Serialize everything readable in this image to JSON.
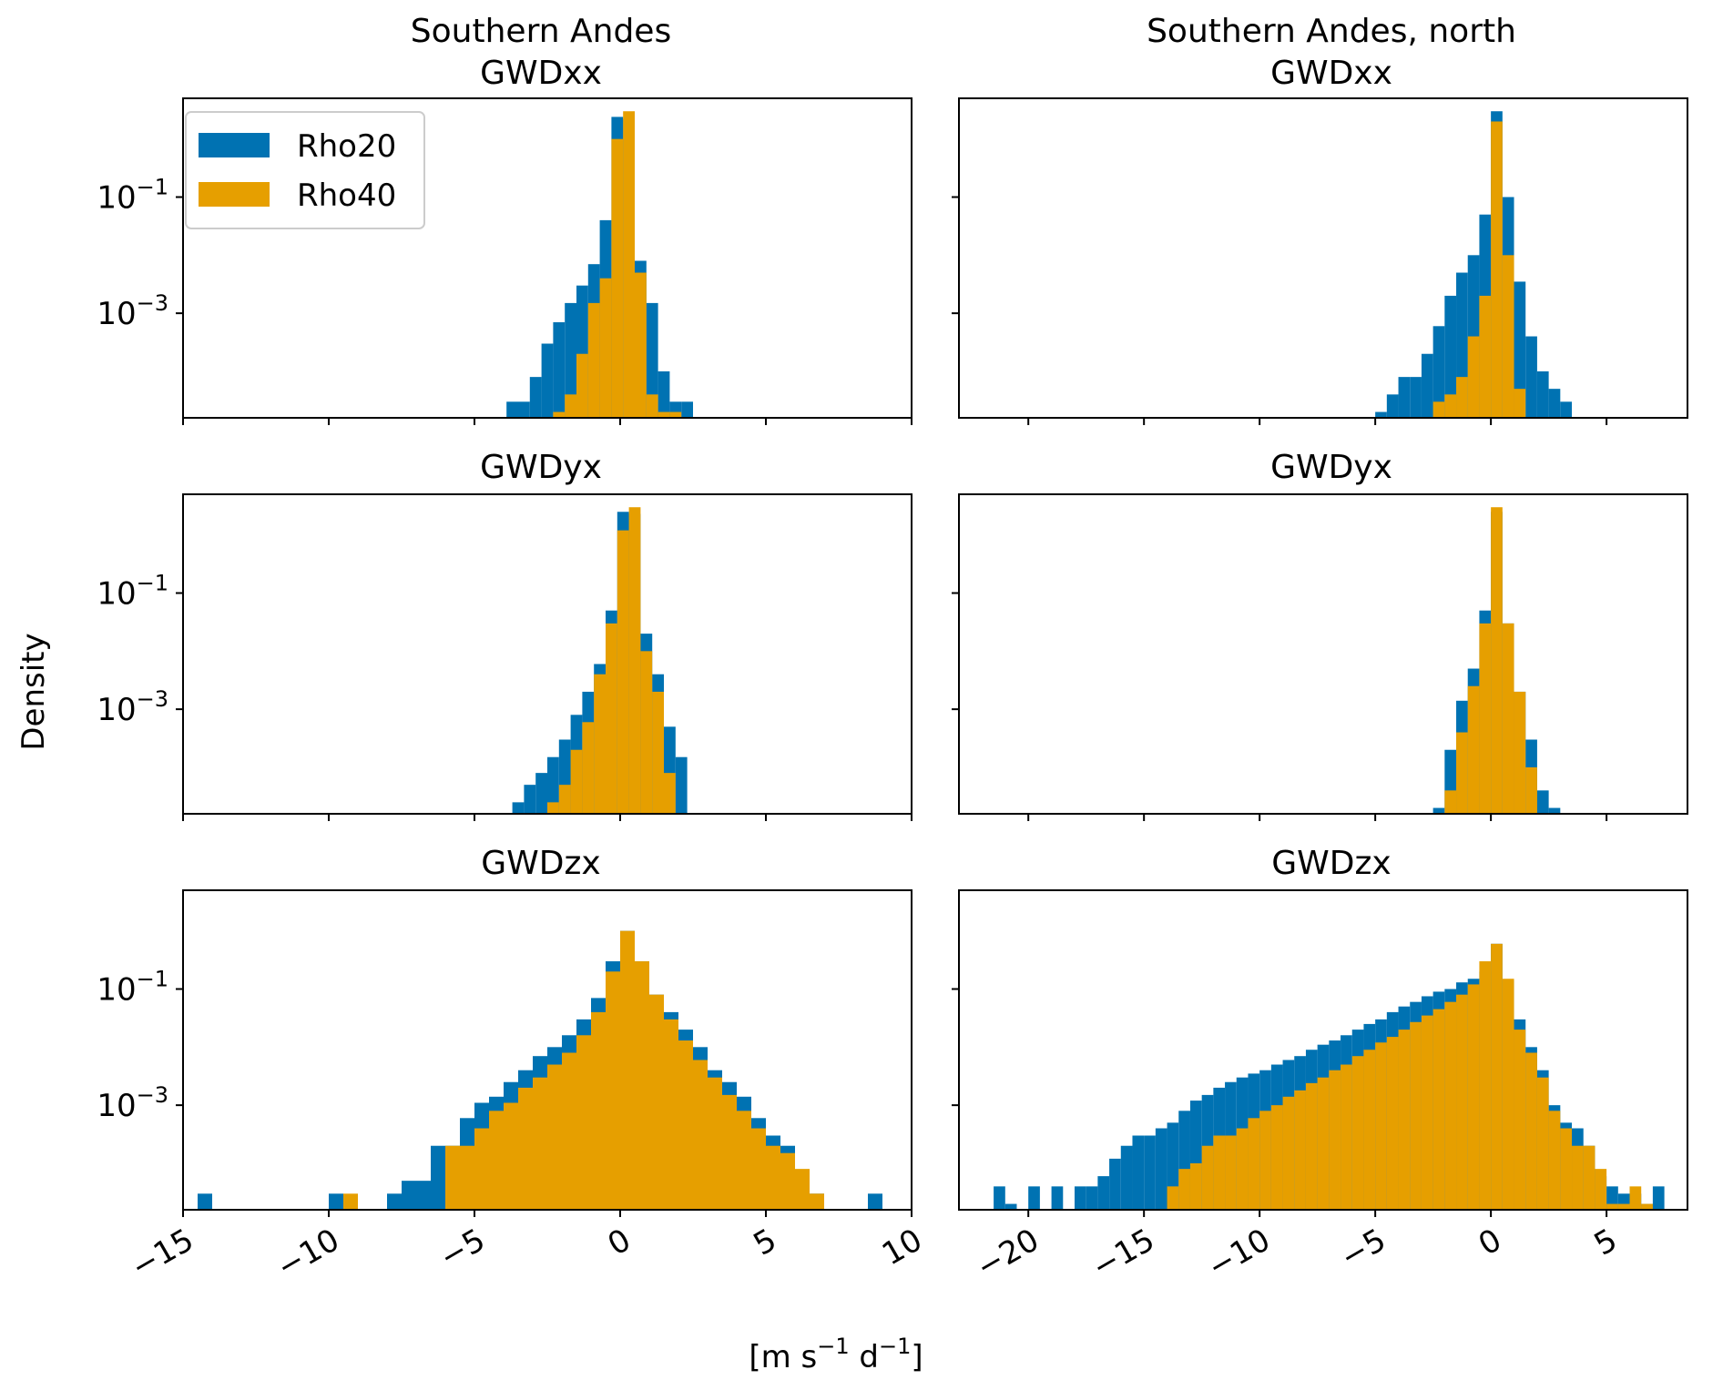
{
  "figure": {
    "ylabel": "Density",
    "xlabel_main": "[m s",
    "xlabel_sup1": "−1",
    "xlabel_mid": " d",
    "xlabel_sup2": "−1",
    "xlabel_end": "]"
  },
  "legend": {
    "placement": "top-left of first panel",
    "items": [
      {
        "label": "Rho20",
        "color": "#0072b2"
      },
      {
        "label": "Rho40",
        "color": "#e69f00"
      }
    ]
  },
  "columns": [
    {
      "title": "Southern Andes",
      "xlim": [
        -15,
        10
      ],
      "xticks": [
        -15,
        -10,
        -5,
        0,
        5,
        10
      ],
      "xtick_labels": [
        "−15",
        "−10",
        "−5",
        "0",
        "5",
        "10"
      ]
    },
    {
      "title": "Southern Andes, north",
      "xlim": [
        -23,
        8.5
      ],
      "xticks": [
        -20,
        -15,
        -10,
        -5,
        0,
        5
      ],
      "xtick_labels": [
        "−20",
        "−15",
        "−10",
        "−5",
        "0",
        "5"
      ]
    }
  ],
  "rows": [
    {
      "title": "GWDxx",
      "ylim_log10": [
        -4.8,
        0.7
      ],
      "yticks_log10": [
        -1,
        -3
      ],
      "ytick_labels": [
        {
          "base": "10",
          "exp": "−1"
        },
        {
          "base": "10",
          "exp": "−3"
        }
      ]
    },
    {
      "title": "GWDyx",
      "ylim_log10": [
        -4.8,
        0.7
      ],
      "yticks_log10": [
        -1,
        -3
      ],
      "ytick_labels": [
        {
          "base": "10",
          "exp": "−1"
        },
        {
          "base": "10",
          "exp": "−3"
        }
      ]
    },
    {
      "title": "GWDzx",
      "ylim_log10": [
        -4.8,
        0.7
      ],
      "yticks_log10": [
        -1,
        -3
      ],
      "ytick_labels": [
        {
          "base": "10",
          "exp": "−1"
        },
        {
          "base": "10",
          "exp": "−3"
        }
      ]
    }
  ],
  "chart_data": [
    {
      "type": "histogram",
      "title": "GWDxx",
      "column": "Southern Andes",
      "scale_y": "log",
      "series": [
        {
          "name": "Rho20",
          "color": "#0072b2",
          "bin_width": 0.4,
          "bins": [
            -3.9,
            -3.5,
            -3.1,
            -2.7,
            -2.3,
            -1.9,
            -1.5,
            -1.1,
            -0.7,
            -0.3,
            0.1,
            0.5,
            0.9,
            1.3,
            1.7,
            2.1
          ],
          "density": [
            3e-05,
            3e-05,
            8e-05,
            0.0003,
            0.0007,
            0.0015,
            0.003,
            0.007,
            0.04,
            2.4,
            2.2,
            0.008,
            0.0015,
            0.0001,
            3e-05,
            3e-05
          ]
        },
        {
          "name": "Rho40",
          "color": "#e69f00",
          "bin_width": 0.4,
          "bins": [
            -2.3,
            -1.9,
            -1.5,
            -1.1,
            -0.7,
            -0.3,
            0.1,
            0.5,
            0.9,
            1.3,
            1.7
          ],
          "density": [
            2e-05,
            4e-05,
            0.0002,
            0.0015,
            0.004,
            1.0,
            3.0,
            0.005,
            4e-05,
            2e-05,
            2e-05
          ]
        }
      ]
    },
    {
      "type": "histogram",
      "title": "GWDyx",
      "column": "Southern Andes",
      "scale_y": "log",
      "series": [
        {
          "name": "Rho20",
          "color": "#0072b2",
          "bin_width": 0.4,
          "bins": [
            -4.1,
            -3.7,
            -3.3,
            -2.9,
            -2.5,
            -2.1,
            -1.7,
            -1.3,
            -0.9,
            -0.5,
            -0.1,
            0.3,
            0.7,
            1.1,
            1.5,
            1.9,
            2.3
          ],
          "density": [
            1.5e-05,
            2.5e-05,
            5e-05,
            8e-05,
            0.00015,
            0.0003,
            0.0008,
            0.002,
            0.006,
            0.05,
            2.5,
            2.3,
            0.02,
            0.004,
            0.0005,
            0.00015,
            1.5e-05
          ]
        },
        {
          "name": "Rho40",
          "color": "#e69f00",
          "bin_width": 0.4,
          "bins": [
            -3.3,
            -2.9,
            -2.5,
            -2.1,
            -1.7,
            -1.3,
            -0.9,
            -0.5,
            -0.1,
            0.3,
            0.7,
            1.1,
            1.5,
            1.9
          ],
          "density": [
            1.5e-05,
            1.5e-05,
            2.5e-05,
            5e-05,
            0.0002,
            0.0006,
            0.004,
            0.03,
            1.2,
            3.0,
            0.01,
            0.002,
            8e-05,
            1.5e-05
          ]
        }
      ]
    },
    {
      "type": "histogram",
      "title": "GWDzx",
      "column": "Southern Andes",
      "scale_y": "log",
      "series": [
        {
          "name": "Rho20",
          "color": "#0072b2",
          "bin_width": 0.5,
          "bins": [
            -14.5,
            -10.0,
            -8.0,
            -7.5,
            -7.0,
            -6.5,
            -6.0,
            -5.5,
            -5.0,
            -4.5,
            -4.0,
            -3.5,
            -3.0,
            -2.5,
            -2.0,
            -1.5,
            -1.0,
            -0.5,
            0.0,
            0.5,
            1.0,
            1.5,
            2.0,
            2.5,
            3.0,
            3.5,
            4.0,
            4.5,
            5.0,
            5.5,
            6.0,
            6.5,
            8.5
          ],
          "density": [
            3e-05,
            3e-05,
            3e-05,
            5e-05,
            5e-05,
            0.0002,
            0.0002,
            0.0006,
            0.0011,
            0.0014,
            0.0025,
            0.004,
            0.007,
            0.01,
            0.016,
            0.03,
            0.07,
            0.3,
            1.0,
            0.3,
            0.08,
            0.04,
            0.02,
            0.01,
            0.004,
            0.0025,
            0.0014,
            0.0006,
            0.0003,
            0.0002,
            5e-05,
            3e-05,
            3e-05
          ]
        },
        {
          "name": "Rho40",
          "color": "#e69f00",
          "bin_width": 0.5,
          "bins": [
            -9.5,
            -6.0,
            -5.5,
            -5.0,
            -4.5,
            -4.0,
            -3.5,
            -3.0,
            -2.5,
            -2.0,
            -1.5,
            -1.0,
            -0.5,
            0.0,
            0.5,
            1.0,
            1.5,
            2.0,
            2.5,
            3.0,
            3.5,
            4.0,
            4.5,
            5.0,
            5.5,
            6.0,
            6.5
          ],
          "density": [
            3e-05,
            0.0002,
            0.0002,
            0.0004,
            0.0008,
            0.0011,
            0.002,
            0.003,
            0.005,
            0.008,
            0.016,
            0.04,
            0.2,
            1.0,
            0.3,
            0.08,
            0.03,
            0.013,
            0.006,
            0.003,
            0.0015,
            0.0008,
            0.0004,
            0.0002,
            0.00015,
            8e-05,
            3e-05
          ]
        }
      ]
    },
    {
      "type": "histogram",
      "title": "GWDxx",
      "column": "Southern Andes, north",
      "scale_y": "log",
      "series": [
        {
          "name": "Rho20",
          "color": "#0072b2",
          "bin_width": 0.5,
          "bins": [
            -5.0,
            -4.5,
            -4.0,
            -3.5,
            -3.0,
            -2.5,
            -2.0,
            -1.5,
            -1.0,
            -0.5,
            0.0,
            0.5,
            1.0,
            1.5,
            2.0,
            2.5,
            3.0,
            3.5
          ],
          "density": [
            2e-05,
            4e-05,
            8e-05,
            8e-05,
            0.0002,
            0.0006,
            0.002,
            0.005,
            0.01,
            0.05,
            3.0,
            0.1,
            0.0035,
            0.0004,
            0.0001,
            5e-05,
            3e-05,
            1e-05
          ]
        },
        {
          "name": "Rho40",
          "color": "#e69f00",
          "bin_width": 0.5,
          "bins": [
            -3.0,
            -2.5,
            -2.0,
            -1.5,
            -1.0,
            -0.5,
            0.0,
            0.5,
            1.0
          ],
          "density": [
            1e-05,
            3e-05,
            4e-05,
            8e-05,
            0.0004,
            0.002,
            2.0,
            0.01,
            5e-05
          ]
        }
      ]
    },
    {
      "type": "histogram",
      "title": "GWDyx",
      "column": "Southern Andes, north",
      "scale_y": "log",
      "series": [
        {
          "name": "Rho20",
          "color": "#0072b2",
          "bin_width": 0.5,
          "bins": [
            -2.5,
            -2.0,
            -1.5,
            -1.0,
            -0.5,
            0.0,
            0.5,
            1.0,
            1.5,
            2.0,
            2.5
          ],
          "density": [
            2e-05,
            0.0002,
            0.0014,
            0.005,
            0.05,
            2.5,
            0.03,
            0.002,
            0.0003,
            4e-05,
            2e-05
          ]
        },
        {
          "name": "Rho40",
          "color": "#e69f00",
          "bin_width": 0.5,
          "bins": [
            -2.0,
            -1.5,
            -1.0,
            -0.5,
            0.0,
            0.5,
            1.0,
            1.5,
            2.0
          ],
          "density": [
            4e-05,
            0.0004,
            0.0025,
            0.03,
            3.0,
            0.03,
            0.002,
            0.0001,
            1e-05
          ]
        }
      ]
    },
    {
      "type": "histogram",
      "title": "GWDzx",
      "column": "Southern Andes, north",
      "scale_y": "log",
      "series": [
        {
          "name": "Rho20",
          "color": "#0072b2",
          "bin_width": 0.5,
          "bins": [
            -21.5,
            -21.0,
            -20.0,
            -19.0,
            -18.0,
            -17.5,
            -17.0,
            -16.5,
            -16.0,
            -15.5,
            -15.0,
            -14.5,
            -14.0,
            -13.5,
            -13.0,
            -12.5,
            -12.0,
            -11.5,
            -11.0,
            -10.5,
            -10.0,
            -9.5,
            -9.0,
            -8.5,
            -8.0,
            -7.5,
            -7.0,
            -6.5,
            -6.0,
            -5.5,
            -5.0,
            -4.5,
            -4.0,
            -3.5,
            -3.0,
            -2.5,
            -2.0,
            -1.5,
            -1.0,
            -0.5,
            0.0,
            0.5,
            1.0,
            1.5,
            2.0,
            2.5,
            3.0,
            3.5,
            4.0,
            4.5,
            5.0,
            5.5,
            6.0,
            6.5,
            7.0
          ],
          "density": [
            4e-05,
            2e-05,
            4e-05,
            4e-05,
            4e-05,
            4e-05,
            6e-05,
            0.00012,
            0.0002,
            0.0003,
            0.0003,
            0.0004,
            0.0005,
            0.0008,
            0.0012,
            0.0015,
            0.002,
            0.0025,
            0.003,
            0.0035,
            0.004,
            0.005,
            0.006,
            0.007,
            0.009,
            0.011,
            0.013,
            0.016,
            0.02,
            0.025,
            0.03,
            0.04,
            0.05,
            0.06,
            0.075,
            0.09,
            0.1,
            0.13,
            0.15,
            0.2,
            0.6,
            0.14,
            0.03,
            0.01,
            0.004,
            0.001,
            0.0005,
            0.0004,
            0.0002,
            6e-05,
            4e-05,
            3e-05,
            3e-05,
            2e-05,
            4e-05
          ]
        },
        {
          "name": "Rho40",
          "color": "#e69f00",
          "bin_width": 0.5,
          "bins": [
            -14.0,
            -13.5,
            -13.0,
            -12.5,
            -12.0,
            -11.5,
            -11.0,
            -10.5,
            -10.0,
            -9.5,
            -9.0,
            -8.5,
            -8.0,
            -7.5,
            -7.0,
            -6.5,
            -6.0,
            -5.5,
            -5.0,
            -4.5,
            -4.0,
            -3.5,
            -3.0,
            -2.5,
            -2.0,
            -1.5,
            -1.0,
            -0.5,
            0.0,
            0.5,
            1.0,
            1.5,
            2.0,
            2.5,
            3.0,
            3.5,
            4.0,
            4.5,
            5.0,
            5.5,
            6.0,
            6.5
          ],
          "density": [
            4e-05,
            8e-05,
            0.0001,
            0.0002,
            0.0003,
            0.0003,
            0.0004,
            0.0006,
            0.0008,
            0.001,
            0.0014,
            0.0018,
            0.0024,
            0.003,
            0.004,
            0.005,
            0.007,
            0.009,
            0.012,
            0.015,
            0.02,
            0.027,
            0.035,
            0.045,
            0.06,
            0.08,
            0.12,
            0.3,
            0.6,
            0.15,
            0.02,
            0.008,
            0.003,
            0.0008,
            0.0004,
            0.0002,
            0.0002,
            8e-05,
            2e-05,
            2e-05,
            4e-05,
            2e-05
          ]
        }
      ]
    }
  ]
}
